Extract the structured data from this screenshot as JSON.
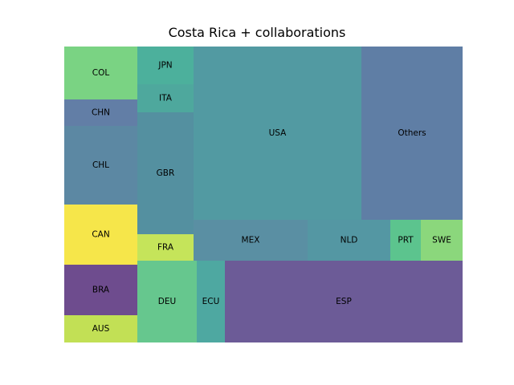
{
  "chart_data": {
    "type": "treemap",
    "title": "Costa Rica + collaborations",
    "legend": "none",
    "grid": false,
    "cells": [
      {
        "label": "COL",
        "color": "#7ad383"
      },
      {
        "label": "CHN",
        "color": "#627ea6"
      },
      {
        "label": "CHL",
        "color": "#5c88a3"
      },
      {
        "label": "CAN",
        "color": "#f6e64a"
      },
      {
        "label": "BRA",
        "color": "#6e4c8e"
      },
      {
        "label": "AUS",
        "color": "#c2e055"
      },
      {
        "label": "JPN",
        "color": "#4cb09c"
      },
      {
        "label": "ITA",
        "color": "#4ea89d"
      },
      {
        "label": "GBR",
        "color": "#5490a0"
      },
      {
        "label": "FRA",
        "color": "#c5e45a"
      },
      {
        "label": "DEU",
        "color": "#66c78e"
      },
      {
        "label": "ECU",
        "color": "#4ea8a1"
      },
      {
        "label": "USA",
        "color": "#529aa2"
      },
      {
        "label": "Others",
        "color": "#5f7ea5"
      },
      {
        "label": "MEX",
        "color": "#5a8fa3"
      },
      {
        "label": "NLD",
        "color": "#5497a3"
      },
      {
        "label": "PRT",
        "color": "#5cc48e"
      },
      {
        "label": "SWE",
        "color": "#8bd77c"
      },
      {
        "label": "ESP",
        "color": "#6c5b97"
      }
    ]
  }
}
